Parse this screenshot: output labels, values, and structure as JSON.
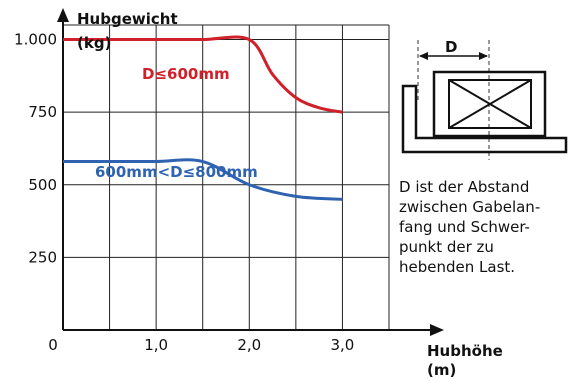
{
  "colors": {
    "red": "#d0202a",
    "blue": "#2f62b0",
    "grid": "#222222"
  },
  "chart_data": {
    "type": "line",
    "title": "",
    "ylabel": [
      "Hubgewicht",
      "(kg)"
    ],
    "xlabel": [
      "Hubhöhe",
      "(m)"
    ],
    "xlim": [
      0,
      3.5
    ],
    "ylim": [
      0,
      1050
    ],
    "x_ticks": [
      "0",
      "1,0",
      "2,0",
      "3,0"
    ],
    "y_ticks": [
      "250",
      "500",
      "750",
      "1.000"
    ],
    "grid": true,
    "series": [
      {
        "name": "D≤600mm",
        "color": "red",
        "x": [
          0,
          0.5,
          1.0,
          1.5,
          2.0,
          2.25,
          2.5,
          2.75,
          3.0
        ],
        "y": [
          1000,
          1000,
          1000,
          1000,
          1000,
          880,
          800,
          765,
          750
        ]
      },
      {
        "name": "600mm<D≤800mm",
        "color": "blue",
        "x": [
          0,
          0.5,
          1.0,
          1.5,
          2.0,
          2.5,
          3.0
        ],
        "y": [
          580,
          580,
          580,
          580,
          500,
          460,
          450
        ]
      }
    ]
  },
  "diagram": {
    "dimension_label": "D",
    "description": [
      "D ist der Abstand",
      "zwischen Gabelan-",
      "fang und Schwer-",
      "punkt der zu",
      "hebenden Last."
    ]
  }
}
